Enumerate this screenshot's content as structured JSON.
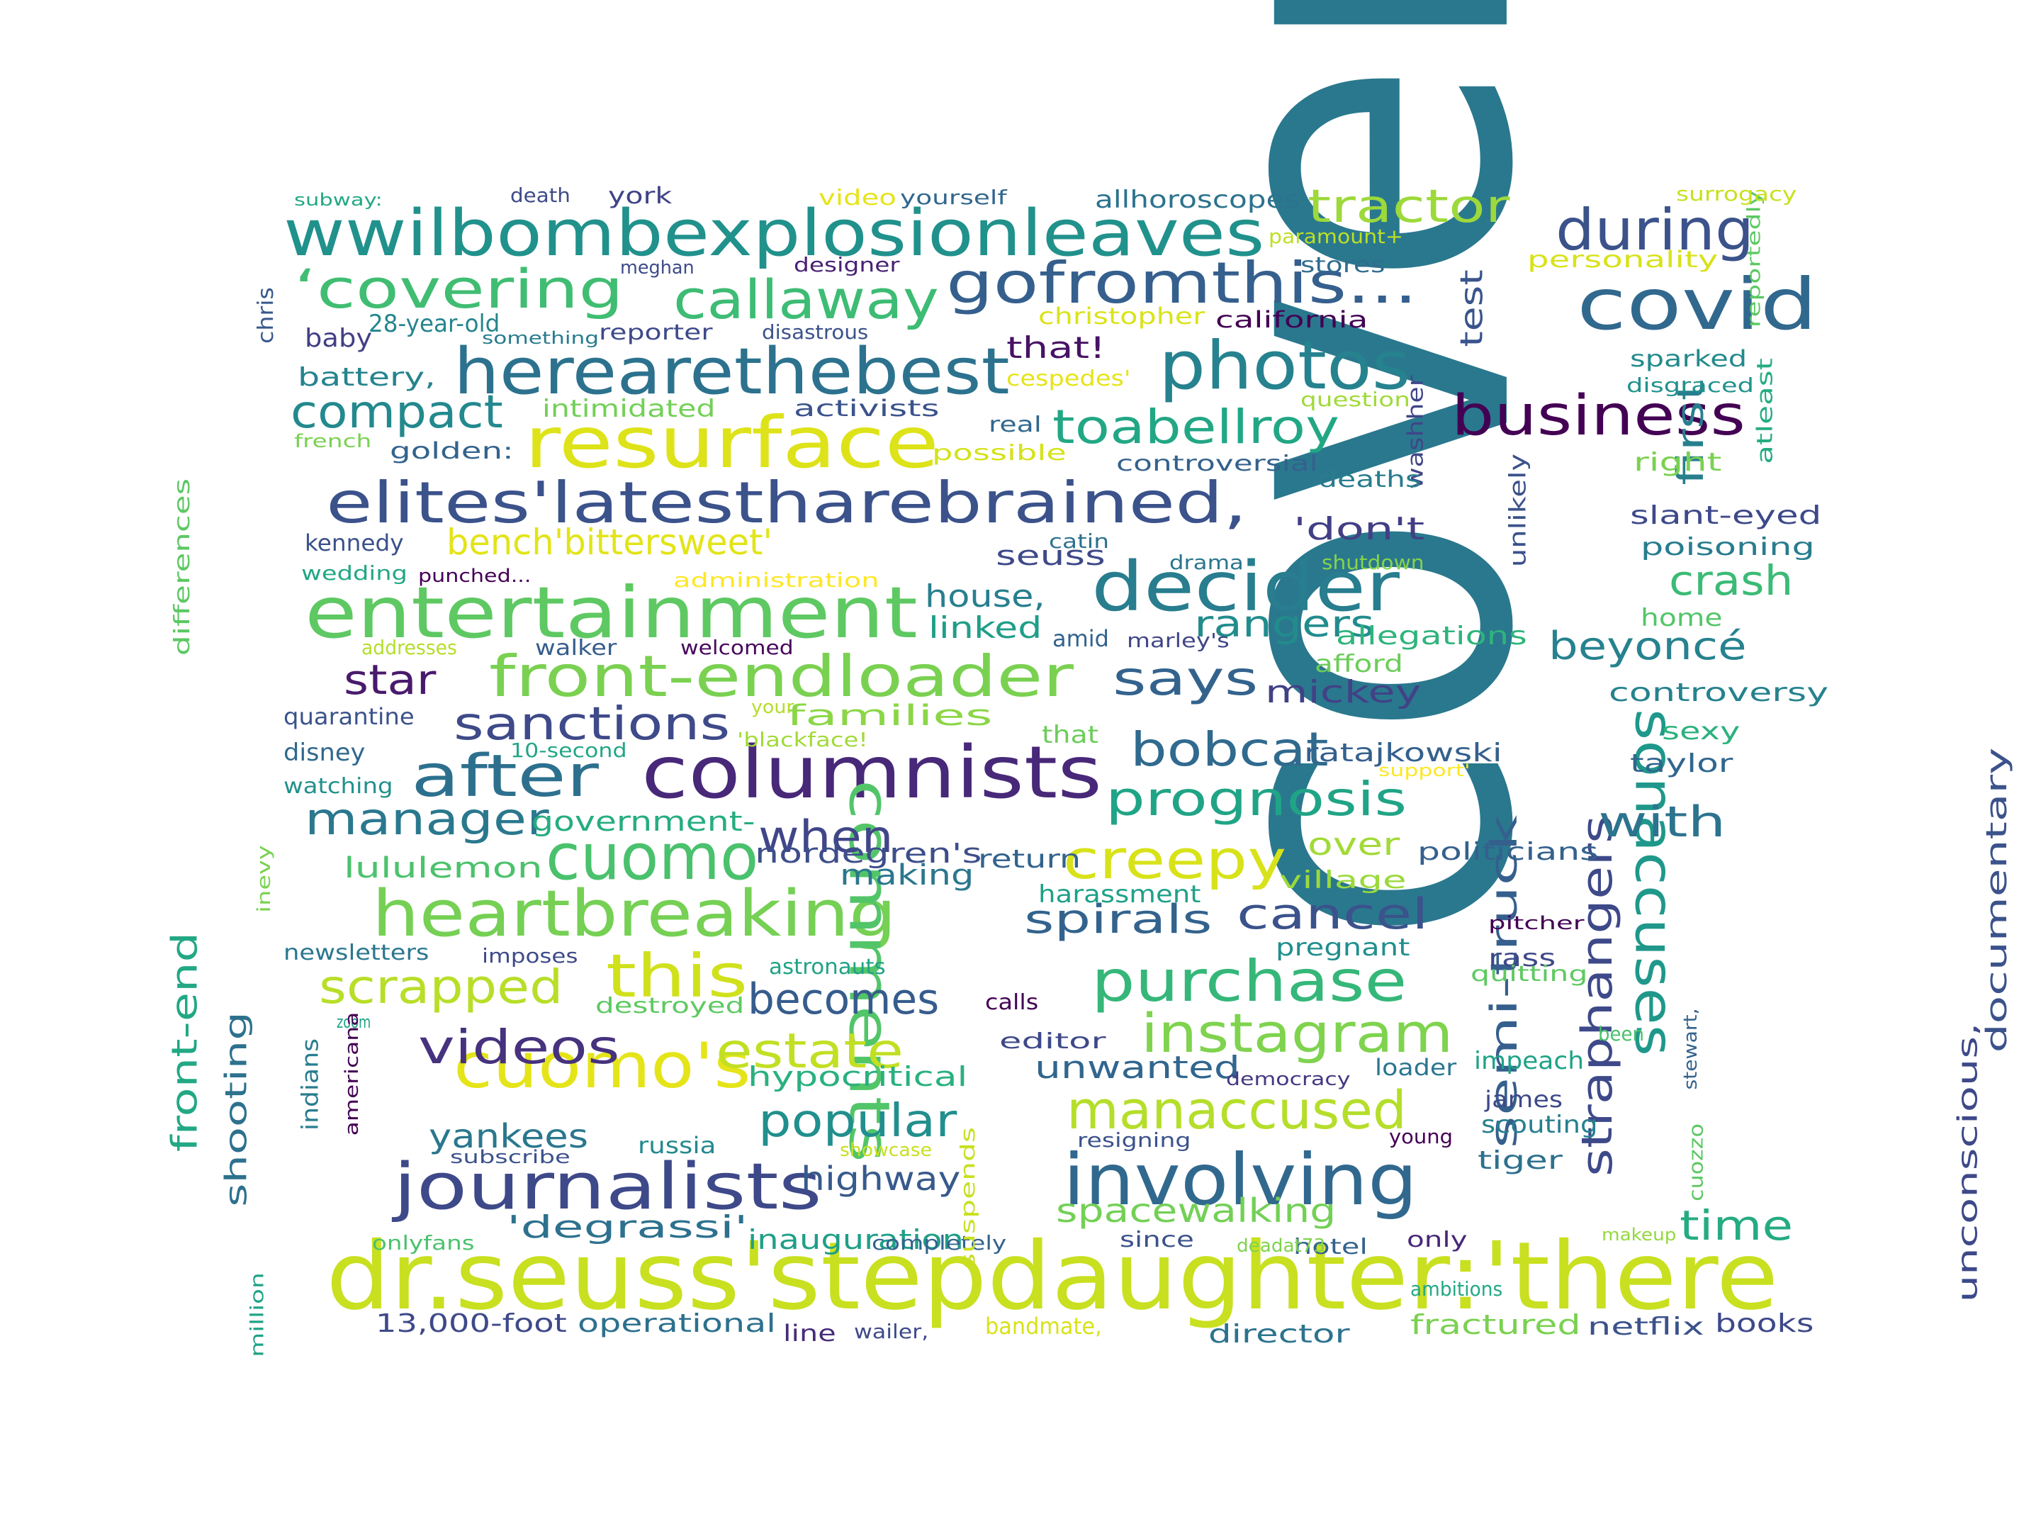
{
  "words": [
    {
      "text": "cover",
      "color": "#2a788e"
    },
    {
      "text": "dr.seuss'stepdaughter:'there",
      "color": "#c8e020"
    },
    {
      "text": "wwilbombexplosionleaves",
      "color": "#21918c"
    },
    {
      "text": "elites'latestharebrained,",
      "color": "#3b528b"
    },
    {
      "text": "entertainment",
      "color": "#5ec962"
    },
    {
      "text": "columnists",
      "color": "#482878"
    },
    {
      "text": "covid",
      "color": "#31688e"
    },
    {
      "text": "resurface",
      "color": "#dde318"
    },
    {
      "text": "herearethebest",
      "color": "#2c728e"
    },
    {
      "text": "photos",
      "color": "#26828e"
    },
    {
      "text": "gofromthis...",
      "color": "#355f8d"
    },
    {
      "text": "decider",
      "color": "#287d8e"
    },
    {
      "text": "heartbreaking",
      "color": "#75d054"
    },
    {
      "text": "journalists",
      "color": "#3e4989"
    },
    {
      "text": "involving",
      "color": "#31688e"
    },
    {
      "text": "comments",
      "color": "#52c569"
    },
    {
      "text": "cuomo's",
      "color": "#e5e419"
    },
    {
      "text": "front-endloader",
      "color": "#7ad151"
    },
    {
      "text": "cuomo",
      "color": "#4ac16d"
    },
    {
      "text": "business",
      "color": "#440154"
    },
    {
      "text": "sonaccuses",
      "color": "#1f988b"
    },
    {
      "text": "‘covering",
      "color": "#40bd72"
    },
    {
      "text": "callaway",
      "color": "#3dbc74"
    },
    {
      "text": "after",
      "color": "#2d708e"
    },
    {
      "text": "during",
      "color": "#3b528b"
    },
    {
      "text": "tractor",
      "color": "#9dd93b"
    },
    {
      "text": "purchase",
      "color": "#35b779"
    },
    {
      "text": "instagram",
      "color": "#7fd34e"
    },
    {
      "text": "creepy",
      "color": "#d8e219"
    },
    {
      "text": "toabellroy",
      "color": "#22a785"
    },
    {
      "text": "semi-truck",
      "color": "#355f8d"
    },
    {
      "text": "straphangers",
      "color": "#3e4989"
    },
    {
      "text": "manaccused",
      "color": "#b5de2b"
    },
    {
      "text": "scrapped",
      "color": "#b8de29"
    },
    {
      "text": "this",
      "color": "#d0e11c"
    },
    {
      "text": "estate",
      "color": "#c2df23"
    },
    {
      "text": "prognosis",
      "color": "#20a486"
    },
    {
      "text": "says",
      "color": "#33638d"
    },
    {
      "text": "bobcat",
      "color": "#306a8e"
    },
    {
      "text": "videos",
      "color": "#46327e"
    },
    {
      "text": "compact",
      "color": "#23898e"
    },
    {
      "text": "with",
      "color": "#2c738e"
    },
    {
      "text": "popular",
      "color": "#218f8d"
    },
    {
      "text": "spirals",
      "color": "#33638d"
    },
    {
      "text": "cancel",
      "color": "#3b528b"
    },
    {
      "text": "becomes",
      "color": "#365c8d"
    },
    {
      "text": "manager",
      "color": "#2a788e"
    },
    {
      "text": "when",
      "color": "#404688"
    },
    {
      "text": "sanctions",
      "color": "#3e4a89"
    },
    {
      "text": "crash",
      "color": "#3bbb75"
    },
    {
      "text": "beyoncé",
      "color": "#26828e"
    },
    {
      "text": "bench'bittersweet'",
      "color": "#e2e418"
    },
    {
      "text": "star",
      "color": "#481a6c"
    },
    {
      "text": "time",
      "color": "#25ab82"
    },
    {
      "text": "first",
      "color": "#277f8e"
    },
    {
      "text": "test",
      "color": "#3a548c"
    },
    {
      "text": "documentary",
      "color": "#3b528b"
    },
    {
      "text": "unconscious,",
      "color": "#3e4989"
    },
    {
      "text": "yankees",
      "color": "#2a778e"
    },
    {
      "text": "front-end",
      "color": "#22a884"
    },
    {
      "text": "shooting",
      "color": "#2d718e"
    },
    {
      "text": "highway",
      "color": "#375a8c"
    },
    {
      "text": "unwanted",
      "color": "#31668e"
    },
    {
      "text": "spacewalking",
      "color": "#73d056"
    },
    {
      "text": "hypocritical",
      "color": "#2ab07f"
    },
    {
      "text": "'degrassi'",
      "color": "#2d718e"
    },
    {
      "text": "inauguration",
      "color": "#1f9f88"
    },
    {
      "text": "rangers",
      "color": "#228c8d"
    },
    {
      "text": "'don't",
      "color": "#423f85"
    },
    {
      "text": "mickey",
      "color": "#424186"
    },
    {
      "text": "house,",
      "color": "#277f8e"
    },
    {
      "text": "linked",
      "color": "#1f9e89"
    },
    {
      "text": "families",
      "color": "#8bd646"
    },
    {
      "text": "that!",
      "color": "#471365"
    },
    {
      "text": "seuss",
      "color": "#3e4a89"
    },
    {
      "text": "lululemon",
      "color": "#4cc26c"
    },
    {
      "text": "government-",
      "color": "#26ad81"
    },
    {
      "text": "nordegren's",
      "color": "#3d4e8a"
    },
    {
      "text": "over",
      "color": "#a2da37"
    },
    {
      "text": "making",
      "color": "#2a778e"
    },
    {
      "text": "return",
      "color": "#33638d"
    },
    {
      "text": "harassment",
      "color": "#1fa188"
    },
    {
      "text": "ratajkowski",
      "color": "#34608d"
    },
    {
      "text": "village",
      "color": "#9bd93c"
    },
    {
      "text": "politicians",
      "color": "#34618d"
    },
    {
      "text": "pregnant",
      "color": "#218f8d"
    },
    {
      "text": "rass",
      "color": "#3e4989"
    },
    {
      "text": "allegations",
      "color": "#2fb47c"
    },
    {
      "text": "afford",
      "color": "#6ccd5a"
    },
    {
      "text": "controversy",
      "color": "#26828e"
    },
    {
      "text": "sexy",
      "color": "#2cb17e"
    },
    {
      "text": "taylor",
      "color": "#31668e"
    },
    {
      "text": "slant-eyed",
      "color": "#3e4989"
    },
    {
      "text": "poisoning",
      "color": "#287c8e"
    },
    {
      "text": "home",
      "color": "#54c568"
    },
    {
      "text": "right",
      "color": "#7ad151"
    },
    {
      "text": "disgraced",
      "color": "#20928c"
    },
    {
      "text": "sparked",
      "color": "#238a8d"
    },
    {
      "text": "atleast",
      "color": "#25ac82"
    },
    {
      "text": "reportedly",
      "color": "#5cc863"
    },
    {
      "text": "surrogacy",
      "color": "#c8e020"
    },
    {
      "text": "personality",
      "color": "#d8e219"
    },
    {
      "text": "unlikely",
      "color": "#3b528b"
    },
    {
      "text": "washher",
      "color": "#404688"
    },
    {
      "text": "deaths",
      "color": "#287d8e"
    },
    {
      "text": "shutdown",
      "color": "#84d44b"
    },
    {
      "text": "drama",
      "color": "#2a768e"
    },
    {
      "text": "catin",
      "color": "#2d718e"
    },
    {
      "text": "controversial",
      "color": "#34618d"
    },
    {
      "text": "question",
      "color": "#a0da39"
    },
    {
      "text": "real",
      "color": "#31688e"
    },
    {
      "text": "possible",
      "color": "#d5e21a"
    },
    {
      "text": "cespedes'",
      "color": "#e5e419"
    },
    {
      "text": "california",
      "color": "#440154"
    },
    {
      "text": "christopher",
      "color": "#dae319"
    },
    {
      "text": "stores",
      "color": "#2f6c8e"
    },
    {
      "text": "paramount+",
      "color": "#bddf26"
    },
    {
      "text": "allhoroscopes",
      "color": "#2c728e"
    },
    {
      "text": "yourself",
      "color": "#31678e"
    },
    {
      "text": "video",
      "color": "#e7e419"
    },
    {
      "text": "york",
      "color": "#404387"
    },
    {
      "text": "death",
      "color": "#3e4a89"
    },
    {
      "text": "subway:",
      "color": "#22a884"
    },
    {
      "text": "meghan",
      "color": "#3e4a89"
    },
    {
      "text": "designer",
      "color": "#482173"
    },
    {
      "text": "disastrous",
      "color": "#3b528b"
    },
    {
      "text": "reporter",
      "color": "#3e4a89"
    },
    {
      "text": "28-year-old",
      "color": "#25858e"
    },
    {
      "text": "baby",
      "color": "#423f85"
    },
    {
      "text": "chris",
      "color": "#38588c"
    },
    {
      "text": "something",
      "color": "#287c8e"
    },
    {
      "text": "battery,",
      "color": "#25848e"
    },
    {
      "text": "intimidated",
      "color": "#73d056"
    },
    {
      "text": "activists",
      "color": "#3b528b"
    },
    {
      "text": "french",
      "color": "#7ad151"
    },
    {
      "text": "golden:",
      "color": "#33638d"
    },
    {
      "text": "kennedy",
      "color": "#3b518b"
    },
    {
      "text": "differences",
      "color": "#5cc863"
    },
    {
      "text": "wedding",
      "color": "#22a785"
    },
    {
      "text": "punched...",
      "color": "#440154"
    },
    {
      "text": "administration",
      "color": "#fde725"
    },
    {
      "text": "addresses",
      "color": "#b5de2b"
    },
    {
      "text": "walker",
      "color": "#365d8d"
    },
    {
      "text": "welcomed",
      "color": "#46085c"
    },
    {
      "text": "amid",
      "color": "#33638d"
    },
    {
      "text": "marley's",
      "color": "#404688"
    },
    {
      "text": "quarantine",
      "color": "#3b528b"
    },
    {
      "text": "disney",
      "color": "#31688e"
    },
    {
      "text": "watching",
      "color": "#21918c"
    },
    {
      "text": "10-second",
      "color": "#22a785"
    },
    {
      "text": "your",
      "color": "#b5de2b"
    },
    {
      "text": "'blackface!",
      "color": "#a2da37"
    },
    {
      "text": "that",
      "color": "#6ccd5a"
    },
    {
      "text": "support'",
      "color": "#fde725"
    },
    {
      "text": "inevy",
      "color": "#7ad151"
    },
    {
      "text": "newsletters",
      "color": "#2a778e"
    },
    {
      "text": "imposes",
      "color": "#3e4a89"
    },
    {
      "text": "astronauts",
      "color": "#20a386"
    },
    {
      "text": "destroyed",
      "color": "#5ec962"
    },
    {
      "text": "zoom",
      "color": "#1fa287"
    },
    {
      "text": "americana",
      "color": "#440154"
    },
    {
      "text": "indians",
      "color": "#287d8e"
    },
    {
      "text": "subscribe",
      "color": "#3b528b"
    },
    {
      "text": "russia",
      "color": "#23898e"
    },
    {
      "text": "showcase",
      "color": "#c8e020"
    },
    {
      "text": "onlyfans",
      "color": "#4ac16d"
    },
    {
      "text": "million",
      "color": "#20a386"
    },
    {
      "text": "13,000-foot",
      "color": "#3e4989"
    },
    {
      "text": "operational",
      "color": "#2d708e"
    },
    {
      "text": "line",
      "color": "#472c7a"
    },
    {
      "text": "wailer,",
      "color": "#3e4989"
    },
    {
      "text": "bandmate,",
      "color": "#d8e219"
    },
    {
      "text": "director",
      "color": "#2c738e"
    },
    {
      "text": "completely",
      "color": "#33638d"
    },
    {
      "text": "since",
      "color": "#3b528b"
    },
    {
      "text": "hotel",
      "color": "#33638d"
    },
    {
      "text": "only",
      "color": "#482878"
    },
    {
      "text": "suspends",
      "color": "#c8e020"
    },
    {
      "text": "resigning",
      "color": "#3b528b"
    },
    {
      "text": "calls",
      "color": "#440154"
    },
    {
      "text": "editor",
      "color": "#3e4989"
    },
    {
      "text": "democracy",
      "color": "#443983"
    },
    {
      "text": "deadat73",
      "color": "#7fd34e"
    },
    {
      "text": "loader",
      "color": "#2a768e"
    },
    {
      "text": "been",
      "color": "#4ac16d"
    },
    {
      "text": "impeach",
      "color": "#1fa287"
    },
    {
      "text": "james",
      "color": "#3e4989"
    },
    {
      "text": "scouting",
      "color": "#277f8e"
    },
    {
      "text": "tiger",
      "color": "#2d718e"
    },
    {
      "text": "young",
      "color": "#440154"
    },
    {
      "text": "cuozzo",
      "color": "#5cc863"
    },
    {
      "text": "stewart,",
      "color": "#33638d"
    },
    {
      "text": "quitting",
      "color": "#5ec962"
    },
    {
      "text": "pitcher",
      "color": "#440154"
    },
    {
      "text": "makeup",
      "color": "#95d840"
    },
    {
      "text": "ambitions",
      "color": "#22a884"
    },
    {
      "text": "fractured",
      "color": "#7ad151"
    },
    {
      "text": "netflix",
      "color": "#3b528b"
    },
    {
      "text": "books",
      "color": "#3e4989"
    }
  ]
}
